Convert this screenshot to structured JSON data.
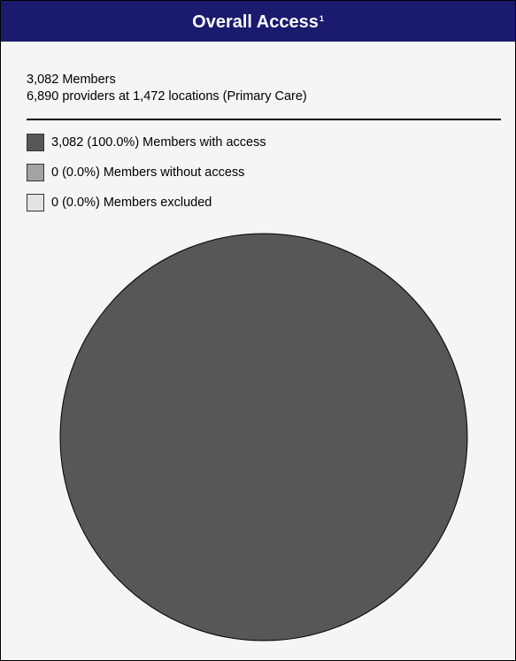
{
  "header": {
    "title": "Overall Access",
    "footnote": "1"
  },
  "summary": {
    "members": "3,082 Members",
    "providers": "6,890 providers at 1,472 locations (Primary Care)"
  },
  "legend": [
    {
      "label": "3,082 (100.0%) Members with access",
      "color": "#575757"
    },
    {
      "label": "0 (0.0%) Members without access",
      "color": "#a3a3a3"
    },
    {
      "label": "0 (0.0%) Members excluded",
      "color": "#e3e3e3"
    }
  ],
  "chart_data": {
    "type": "pie",
    "categories": [
      "Members with access",
      "Members without access",
      "Members excluded"
    ],
    "values": [
      3082,
      0,
      0
    ],
    "percentages": [
      100.0,
      0.0,
      0.0
    ],
    "colors": [
      "#575757",
      "#a3a3a3",
      "#e3e3e3"
    ]
  }
}
